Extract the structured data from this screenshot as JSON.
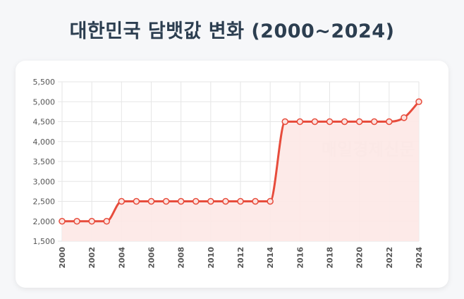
{
  "title": "대한민국 담뱃값 변화 (2000~2024)",
  "watermark": "매일경제신문",
  "chart_data": {
    "type": "line",
    "x": [
      2000,
      2001,
      2002,
      2003,
      2004,
      2005,
      2006,
      2007,
      2008,
      2009,
      2010,
      2011,
      2012,
      2013,
      2014,
      2015,
      2016,
      2017,
      2018,
      2019,
      2020,
      2021,
      2022,
      2023,
      2024
    ],
    "values": [
      2000,
      2000,
      2000,
      2000,
      2500,
      2500,
      2500,
      2500,
      2500,
      2500,
      2500,
      2500,
      2500,
      2500,
      2500,
      4500,
      4500,
      4500,
      4500,
      4500,
      4500,
      4500,
      4500,
      4600,
      5000
    ],
    "xticks": [
      "2000",
      "2002",
      "2004",
      "2006",
      "2008",
      "2010",
      "2012",
      "2014",
      "2016",
      "2018",
      "2020",
      "2022",
      "2024"
    ],
    "yticks": [
      "1,500",
      "2,000",
      "2,500",
      "3,000",
      "3,500",
      "4,000",
      "4,500",
      "5,000",
      "5,500"
    ],
    "ylim": [
      1500,
      5500
    ],
    "xlim": [
      2000,
      2024
    ],
    "line_color": "#e74c3c",
    "fill_color": "#fde8e6",
    "grid": true
  }
}
